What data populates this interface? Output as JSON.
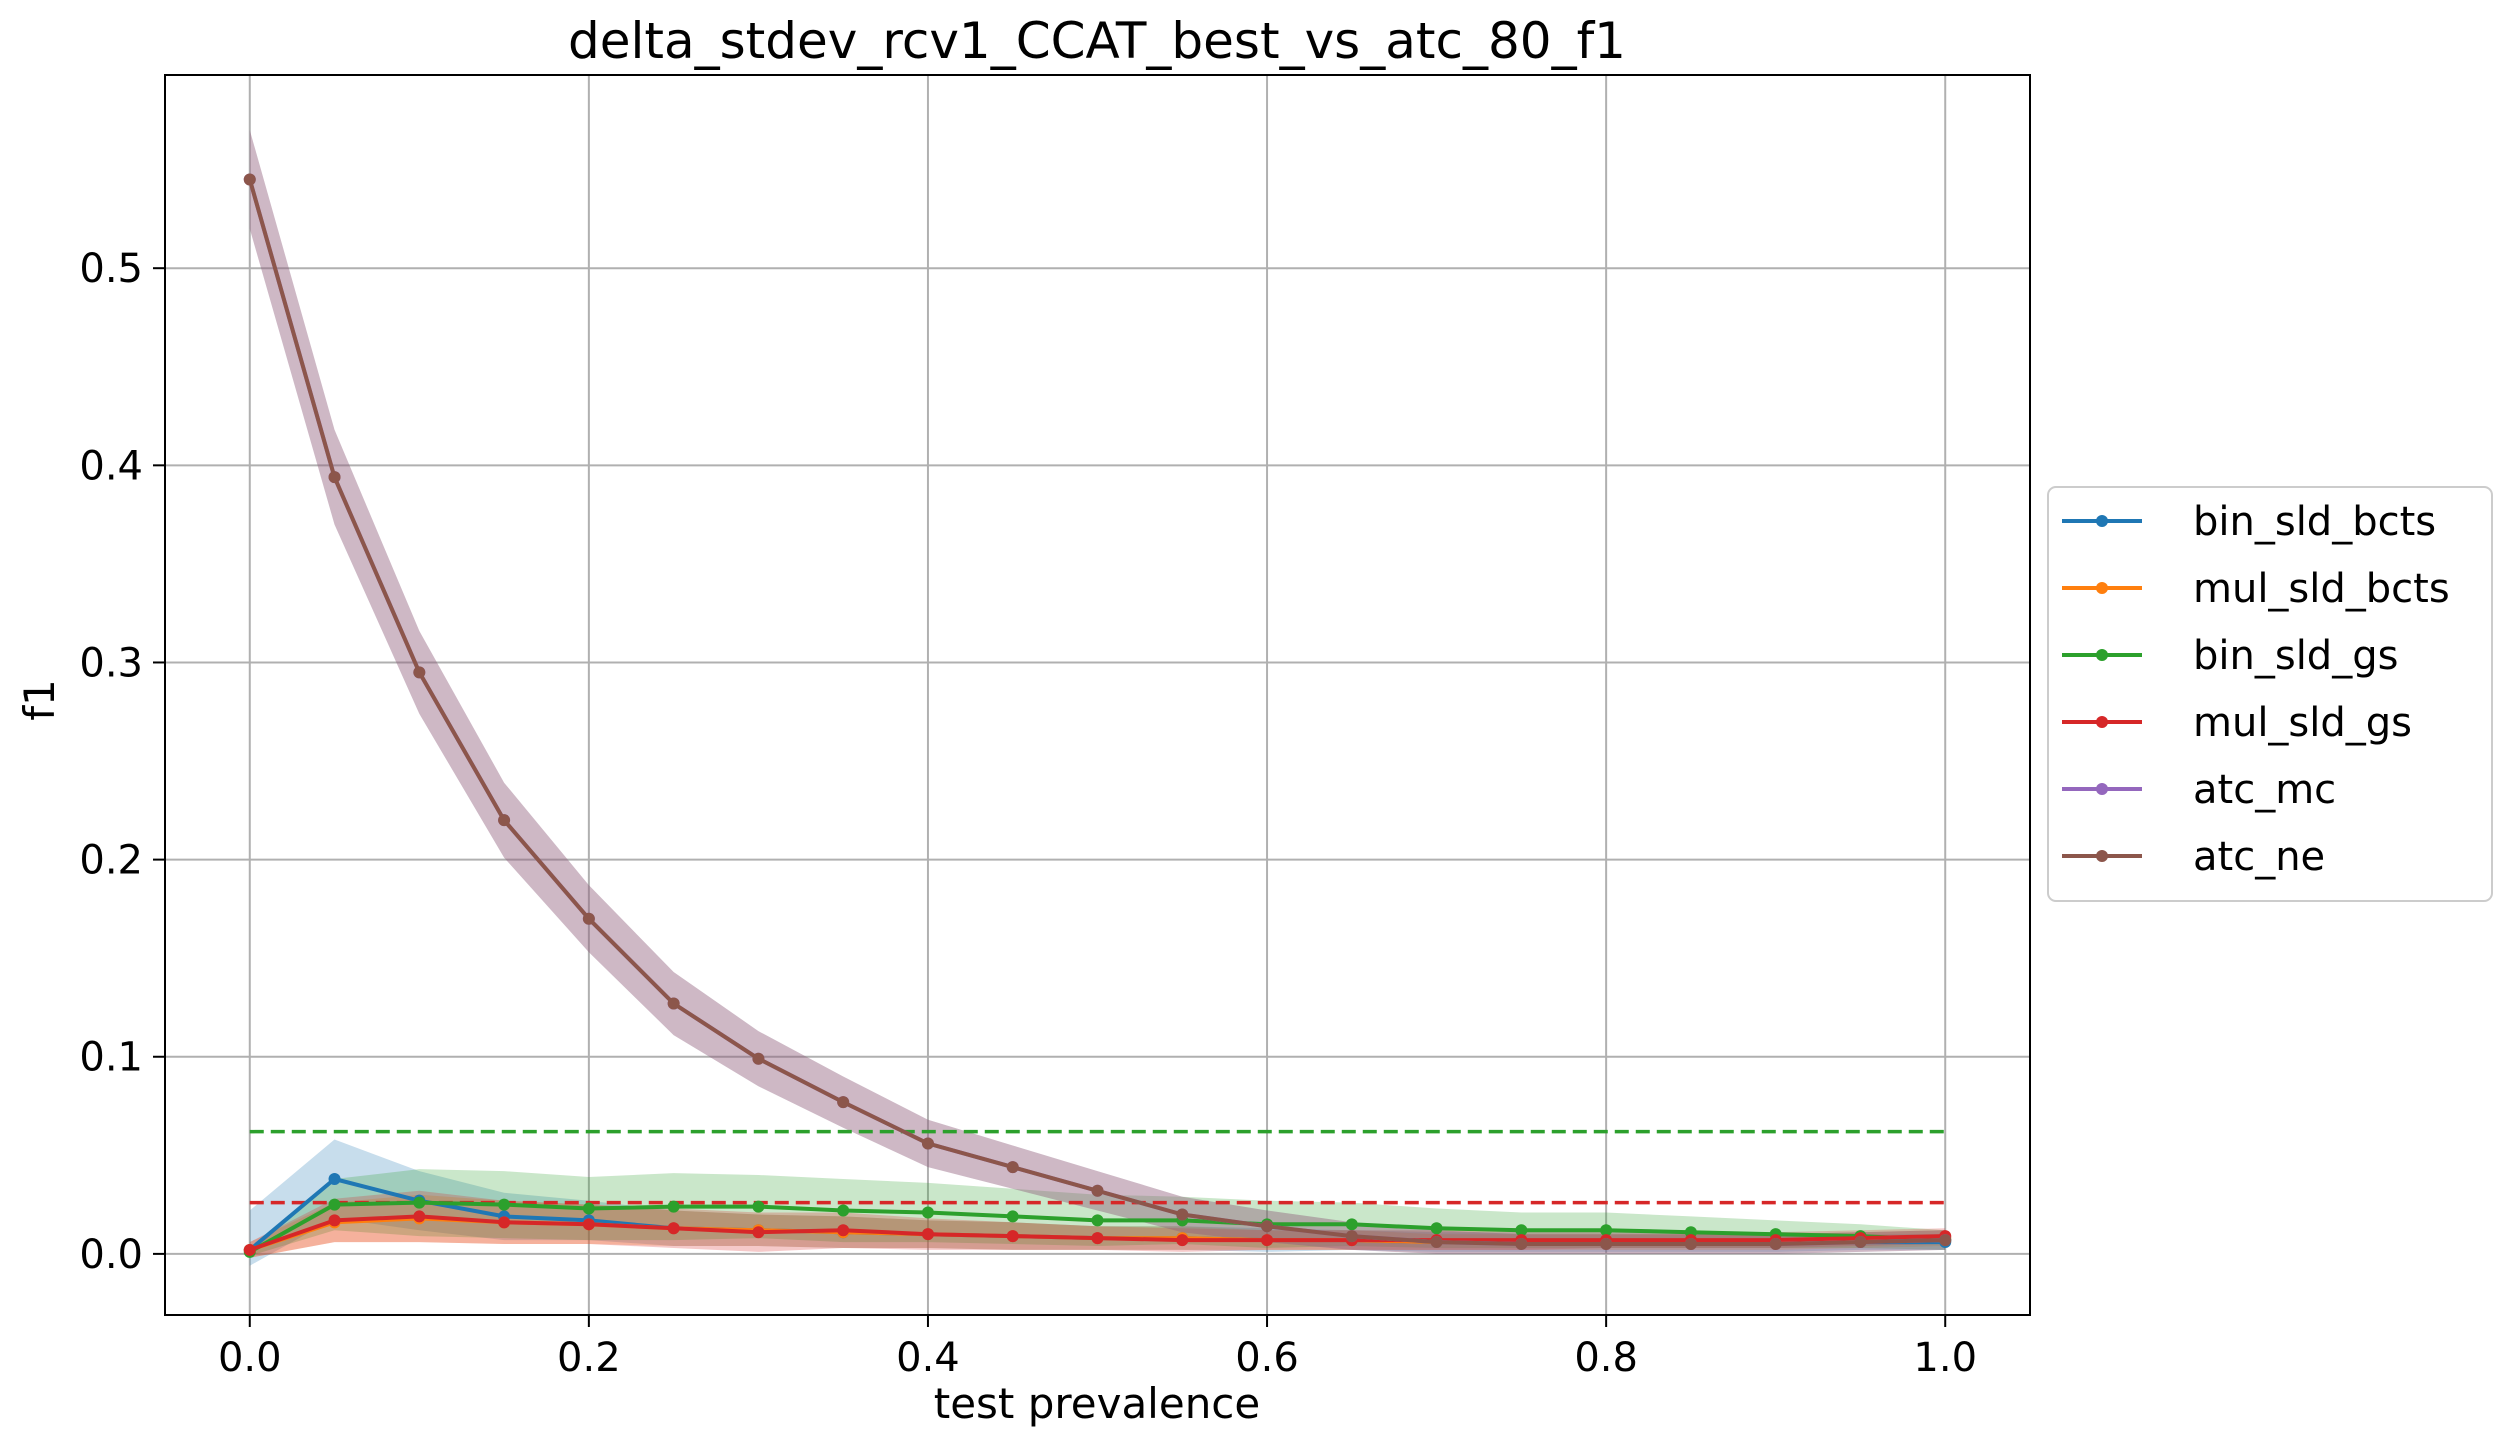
{
  "chart_data": {
    "type": "line",
    "title": "delta_stdev_rcv1_CCAT_best_vs_atc_80_f1",
    "xlabel": "test prevalence",
    "ylabel": "f1",
    "xlim": [
      -0.05,
      1.05
    ],
    "ylim": [
      -0.031,
      0.598
    ],
    "xticks": [
      0.0,
      0.2,
      0.4,
      0.6,
      0.8,
      1.0
    ],
    "xtick_labels": [
      "0.0",
      "0.2",
      "0.4",
      "0.6",
      "0.8",
      "1.0"
    ],
    "yticks": [
      0.0,
      0.1,
      0.2,
      0.3,
      0.4,
      0.5
    ],
    "ytick_labels": [
      "0.0",
      "0.1",
      "0.2",
      "0.3",
      "0.4",
      "0.5"
    ],
    "grid": true,
    "legend_position": "right-outside",
    "x": [
      0.0,
      0.05,
      0.1,
      0.15,
      0.2,
      0.25,
      0.3,
      0.35,
      0.4,
      0.45,
      0.5,
      0.55,
      0.6,
      0.65,
      0.7,
      0.75,
      0.8,
      0.85,
      0.9,
      0.95,
      1.0
    ],
    "series": [
      {
        "name": "bin_sld_bcts",
        "color": "#1f77b4",
        "values": [
          0.002,
          0.038,
          0.027,
          0.019,
          0.017,
          0.013,
          0.012,
          0.011,
          0.01,
          0.009,
          0.008,
          0.008,
          0.007,
          0.007,
          0.006,
          0.006,
          0.006,
          0.006,
          0.006,
          0.006,
          0.006
        ],
        "band": [
          0.02,
          0.02,
          0.015,
          0.012,
          0.01,
          0.009,
          0.008,
          0.008,
          0.007,
          0.007,
          0.006,
          0.006,
          0.006,
          0.005,
          0.005,
          0.005,
          0.005,
          0.005,
          0.005,
          0.004,
          0.004
        ]
      },
      {
        "name": "mul_sld_bcts",
        "color": "#ff7f0e",
        "values": [
          0.002,
          0.016,
          0.018,
          0.016,
          0.015,
          0.013,
          0.012,
          0.011,
          0.01,
          0.009,
          0.008,
          0.008,
          0.007,
          0.007,
          0.006,
          0.006,
          0.006,
          0.006,
          0.006,
          0.007,
          0.008
        ],
        "band": [
          0.004,
          0.01,
          0.012,
          0.011,
          0.01,
          0.009,
          0.008,
          0.008,
          0.007,
          0.007,
          0.006,
          0.006,
          0.005,
          0.005,
          0.004,
          0.004,
          0.004,
          0.004,
          0.004,
          0.004,
          0.004
        ]
      },
      {
        "name": "bin_sld_gs",
        "color": "#2ca02c",
        "values": [
          0.001,
          0.025,
          0.026,
          0.025,
          0.023,
          0.024,
          0.024,
          0.022,
          0.021,
          0.019,
          0.017,
          0.017,
          0.015,
          0.015,
          0.013,
          0.012,
          0.012,
          0.011,
          0.01,
          0.009,
          0.007
        ],
        "band": [
          0.002,
          0.013,
          0.017,
          0.017,
          0.016,
          0.017,
          0.016,
          0.016,
          0.015,
          0.014,
          0.013,
          0.012,
          0.012,
          0.011,
          0.01,
          0.009,
          0.009,
          0.008,
          0.007,
          0.006,
          0.005
        ],
        "hline": 0.062
      },
      {
        "name": "mul_sld_gs",
        "color": "#d62728",
        "values": [
          0.002,
          0.017,
          0.019,
          0.016,
          0.015,
          0.013,
          0.011,
          0.012,
          0.01,
          0.009,
          0.008,
          0.007,
          0.007,
          0.007,
          0.007,
          0.007,
          0.007,
          0.007,
          0.007,
          0.008,
          0.009
        ],
        "band": [
          0.004,
          0.011,
          0.013,
          0.011,
          0.01,
          0.01,
          0.01,
          0.009,
          0.008,
          0.007,
          0.006,
          0.006,
          0.005,
          0.005,
          0.005,
          0.005,
          0.004,
          0.004,
          0.004,
          0.004,
          0.004
        ],
        "hline": 0.026
      },
      {
        "name": "atc_mc",
        "color": "#9467bd",
        "values": [
          0.545,
          0.394,
          0.295,
          0.22,
          0.17,
          0.127,
          0.099,
          0.077,
          0.056,
          0.044,
          0.032,
          0.02,
          0.014,
          0.009,
          0.006,
          0.005,
          0.005,
          0.005,
          0.005,
          0.006,
          0.007
        ],
        "band": [
          0.025,
          0.024,
          0.021,
          0.019,
          0.017,
          0.016,
          0.014,
          0.013,
          0.012,
          0.011,
          0.01,
          0.009,
          0.008,
          0.007,
          0.006,
          0.005,
          0.005,
          0.005,
          0.005,
          0.005,
          0.005
        ]
      },
      {
        "name": "atc_ne",
        "color": "#8c564b",
        "values": [
          0.545,
          0.394,
          0.295,
          0.22,
          0.17,
          0.127,
          0.099,
          0.077,
          0.056,
          0.044,
          0.032,
          0.02,
          0.014,
          0.009,
          0.006,
          0.005,
          0.005,
          0.005,
          0.005,
          0.006,
          0.007
        ],
        "band": [
          0.025,
          0.024,
          0.021,
          0.019,
          0.017,
          0.016,
          0.014,
          0.013,
          0.012,
          0.011,
          0.01,
          0.009,
          0.008,
          0.007,
          0.006,
          0.005,
          0.005,
          0.005,
          0.005,
          0.005,
          0.005
        ]
      }
    ]
  }
}
